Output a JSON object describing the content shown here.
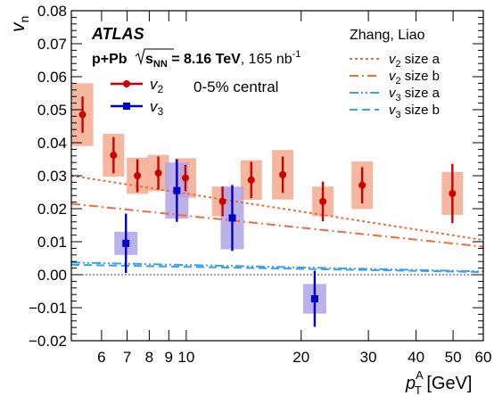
{
  "chart_data": {
    "type": "scatter",
    "title": "",
    "xscale": "log",
    "xlim": [
      5,
      60
    ],
    "ylim": [
      -0.02,
      0.08
    ],
    "x_ticks": [
      6,
      7,
      8,
      9,
      10,
      20,
      30,
      40,
      50,
      60
    ],
    "y_ticks": [
      -0.02,
      -0.01,
      0,
      0.01,
      0.02,
      0.03,
      0.04,
      0.05,
      0.06,
      0.07,
      0.08
    ],
    "xlabel": {
      "p": "p",
      "sup": "A",
      "sub": "T",
      "unit": " [GeV]"
    },
    "ylabel": {
      "main": "v",
      "sub": "n"
    },
    "atlas_label": "ATLAS",
    "collision_label": {
      "system": "p+Pb",
      "sqrt": "s",
      "sqrt_sub": "NN",
      "energy": " = 8.16 TeV",
      "lumi": ", 165 nb",
      "lumi_sup": "-1"
    },
    "centrality_label": "0-5% central",
    "theory_title": "Zhang, Liao",
    "colors": {
      "v2": "#cc0000",
      "v2_box": "#f4a58a",
      "v3": "#0000cc",
      "v3_box": "#b0a4e6",
      "theory_v2": "#f26c3a",
      "theory_v3": "#3aa0f0"
    },
    "series": [
      {
        "name": "v",
        "name_sub": "2",
        "marker": "circle",
        "points": [
          {
            "x": 5.35,
            "y": 0.0485,
            "err": 0.0055,
            "sys": 0.0095
          },
          {
            "x": 6.45,
            "y": 0.0362,
            "err": 0.0055,
            "sys": 0.0065
          },
          {
            "x": 7.45,
            "y": 0.03,
            "err": 0.005,
            "sys": 0.0055
          },
          {
            "x": 8.45,
            "y": 0.0308,
            "err": 0.005,
            "sys": 0.0055
          },
          {
            "x": 9.95,
            "y": 0.0293,
            "err": 0.004,
            "sys": 0.006
          },
          {
            "x": 12.45,
            "y": 0.0222,
            "err": 0.0045,
            "sys": 0.0045
          },
          {
            "x": 14.8,
            "y": 0.0287,
            "err": 0.0055,
            "sys": 0.006
          },
          {
            "x": 17.9,
            "y": 0.0303,
            "err": 0.0055,
            "sys": 0.0075
          },
          {
            "x": 22.8,
            "y": 0.0222,
            "err": 0.006,
            "sys": 0.0045
          },
          {
            "x": 28.9,
            "y": 0.0271,
            "err": 0.0055,
            "sys": 0.0072
          },
          {
            "x": 49.8,
            "y": 0.0246,
            "err": 0.009,
            "sys": 0.0065
          }
        ]
      },
      {
        "name": "v",
        "name_sub": "3",
        "marker": "square",
        "points": [
          {
            "x": 6.95,
            "y": 0.0095,
            "err": 0.009,
            "sys": 0.0035
          },
          {
            "x": 9.45,
            "y": 0.0255,
            "err": 0.0095,
            "sys": 0.0085
          },
          {
            "x": 13.2,
            "y": 0.0172,
            "err": 0.01,
            "sys": 0.0095
          },
          {
            "x": 21.7,
            "y": -0.0073,
            "err": 0.0085,
            "sys": 0.0045
          }
        ]
      }
    ],
    "theory": [
      {
        "label": "size a",
        "prefix": "v",
        "sub": "2",
        "style": "dotted",
        "color_key": "theory_v2",
        "x": [
          5,
          60
        ],
        "y": [
          0.03,
          0.0105
        ]
      },
      {
        "label": "size b",
        "prefix": "v",
        "sub": "2",
        "style": "dashdot",
        "color_key": "theory_v2",
        "x": [
          5,
          60
        ],
        "y": [
          0.0215,
          0.0085
        ]
      },
      {
        "label": "size a",
        "prefix": "v",
        "sub": "3",
        "style": "dashdotdot",
        "color_key": "theory_v3",
        "x": [
          5,
          60
        ],
        "y": [
          0.0037,
          0.001
        ]
      },
      {
        "label": "size b",
        "prefix": "v",
        "sub": "3",
        "style": "dashed",
        "color_key": "theory_v3",
        "x": [
          5,
          60
        ],
        "y": [
          0.003,
          0.0008
        ]
      }
    ]
  }
}
